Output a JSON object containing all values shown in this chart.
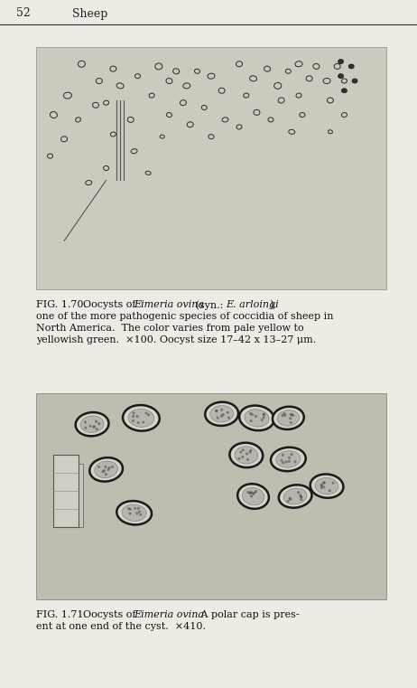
{
  "page_bg": "#eeebe5",
  "header_num": "52",
  "header_text": "Sheep",
  "header_fontsize": 9,
  "caption_fontsize": 8.0,
  "fig1_bg": "#cdc9be",
  "fig2_bg": "#c0bcb0",
  "oocysts1": [
    [
      0.13,
      0.93,
      8,
      7,
      -10
    ],
    [
      0.18,
      0.86,
      7,
      6,
      5
    ],
    [
      0.09,
      0.8,
      9,
      7,
      -5
    ],
    [
      0.05,
      0.72,
      8,
      7,
      15
    ],
    [
      0.12,
      0.7,
      6,
      5,
      -20
    ],
    [
      0.17,
      0.76,
      7,
      6,
      10
    ],
    [
      0.08,
      0.62,
      7,
      6,
      -5
    ],
    [
      0.04,
      0.55,
      6,
      5,
      0
    ],
    [
      0.22,
      0.91,
      7,
      6,
      -8
    ],
    [
      0.24,
      0.84,
      8,
      6,
      12
    ],
    [
      0.2,
      0.77,
      6,
      5,
      -15
    ],
    [
      0.27,
      0.7,
      7,
      6,
      8
    ],
    [
      0.22,
      0.64,
      6,
      5,
      -10
    ],
    [
      0.29,
      0.88,
      6,
      5,
      5
    ],
    [
      0.35,
      0.92,
      8,
      7,
      -5
    ],
    [
      0.38,
      0.86,
      7,
      6,
      10
    ],
    [
      0.33,
      0.8,
      6,
      5,
      -12
    ],
    [
      0.4,
      0.9,
      7,
      6,
      8
    ],
    [
      0.43,
      0.84,
      8,
      6,
      -5
    ],
    [
      0.46,
      0.9,
      6,
      5,
      15
    ],
    [
      0.42,
      0.77,
      7,
      6,
      -8
    ],
    [
      0.38,
      0.72,
      6,
      5,
      10
    ],
    [
      0.44,
      0.68,
      7,
      6,
      -5
    ],
    [
      0.36,
      0.63,
      5,
      4,
      0
    ],
    [
      0.5,
      0.88,
      8,
      6,
      -10
    ],
    [
      0.53,
      0.82,
      7,
      6,
      5
    ],
    [
      0.48,
      0.75,
      6,
      5,
      15
    ],
    [
      0.54,
      0.7,
      7,
      5,
      -8
    ],
    [
      0.5,
      0.63,
      6,
      5,
      10
    ],
    [
      0.58,
      0.93,
      7,
      6,
      -5
    ],
    [
      0.62,
      0.87,
      8,
      6,
      8
    ],
    [
      0.6,
      0.8,
      6,
      5,
      -12
    ],
    [
      0.63,
      0.73,
      7,
      6,
      5
    ],
    [
      0.58,
      0.67,
      6,
      5,
      -10
    ],
    [
      0.66,
      0.91,
      7,
      6,
      12
    ],
    [
      0.69,
      0.84,
      8,
      7,
      -5
    ],
    [
      0.72,
      0.9,
      6,
      5,
      8
    ],
    [
      0.7,
      0.78,
      7,
      6,
      -15
    ],
    [
      0.67,
      0.7,
      6,
      5,
      10
    ],
    [
      0.75,
      0.93,
      8,
      6,
      -8
    ],
    [
      0.78,
      0.87,
      7,
      6,
      5
    ],
    [
      0.75,
      0.8,
      6,
      5,
      -10
    ],
    [
      0.8,
      0.92,
      7,
      6,
      12
    ],
    [
      0.83,
      0.86,
      8,
      6,
      -5
    ],
    [
      0.86,
      0.92,
      7,
      6,
      8
    ],
    [
      0.88,
      0.86,
      6,
      5,
      -10
    ],
    [
      0.84,
      0.78,
      7,
      6,
      5
    ],
    [
      0.88,
      0.72,
      6,
      5,
      -8
    ],
    [
      0.84,
      0.65,
      5,
      4,
      10
    ],
    [
      0.76,
      0.72,
      6,
      5,
      -5
    ],
    [
      0.73,
      0.65,
      7,
      5,
      8
    ],
    [
      0.28,
      0.57,
      7,
      5,
      -10
    ],
    [
      0.2,
      0.5,
      6,
      5,
      5
    ],
    [
      0.15,
      0.44,
      7,
      5,
      -8
    ],
    [
      0.32,
      0.48,
      6,
      4,
      12
    ]
  ],
  "oocysts2": [
    [
      0.16,
      0.85,
      0.095,
      0.115,
      -5
    ],
    [
      0.3,
      0.88,
      0.105,
      0.125,
      3
    ],
    [
      0.2,
      0.63,
      0.095,
      0.115,
      -8
    ],
    [
      0.28,
      0.42,
      0.1,
      0.115,
      5
    ],
    [
      0.53,
      0.9,
      0.095,
      0.115,
      -3
    ],
    [
      0.63,
      0.88,
      0.1,
      0.12,
      8
    ],
    [
      0.72,
      0.88,
      0.09,
      0.11,
      -6
    ],
    [
      0.6,
      0.7,
      0.095,
      0.12,
      4
    ],
    [
      0.72,
      0.68,
      0.1,
      0.115,
      -5
    ],
    [
      0.62,
      0.5,
      0.09,
      0.12,
      10
    ],
    [
      0.74,
      0.5,
      0.095,
      0.11,
      -8
    ],
    [
      0.83,
      0.55,
      0.095,
      0.115,
      5
    ]
  ]
}
